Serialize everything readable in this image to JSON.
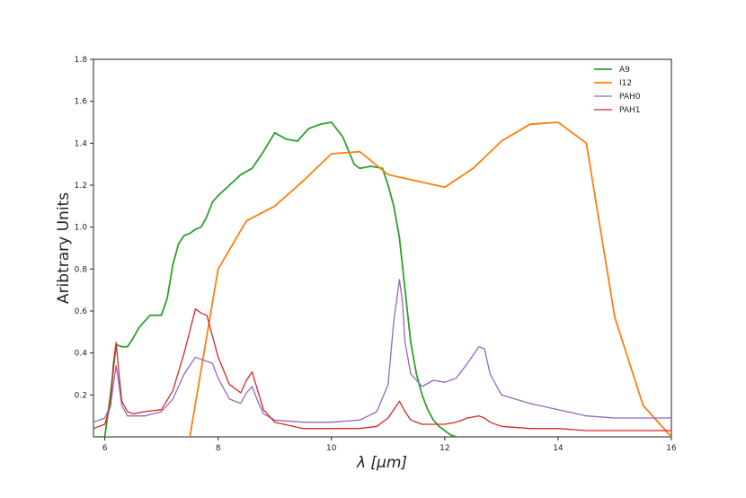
{
  "chart_data": {
    "type": "line",
    "title": "",
    "xlabel": "λ [μm]",
    "ylabel": "Aribtrary Units",
    "xlim": [
      5.8,
      16
    ],
    "ylim": [
      0,
      1.8
    ],
    "xticks": [
      "6",
      "8",
      "10",
      "12",
      "14",
      "16"
    ],
    "yticks": [
      "0.2",
      "0.4",
      "0.6",
      "0.8",
      "1.0",
      "1.2",
      "1.4",
      "1.6",
      "1.8"
    ],
    "grid": false,
    "legend_position": "top-right",
    "series": [
      {
        "name": "A9",
        "color": "#2ca02c",
        "x": [
          5.8,
          6.0,
          6.1,
          6.2,
          6.3,
          6.4,
          6.5,
          6.6,
          6.7,
          6.8,
          6.9,
          7.0,
          7.1,
          7.2,
          7.3,
          7.4,
          7.5,
          7.6,
          7.7,
          7.8,
          7.9,
          8.0,
          8.2,
          8.4,
          8.6,
          8.8,
          9.0,
          9.2,
          9.4,
          9.6,
          9.8,
          10.0,
          10.2,
          10.4,
          10.5,
          10.7,
          10.9,
          11.0,
          11.1,
          11.2,
          11.3,
          11.4,
          11.5,
          11.6,
          11.7,
          11.8,
          11.9,
          12.0,
          12.1,
          12.2
        ],
        "y": [
          0.0,
          0.0,
          0.2,
          0.44,
          0.43,
          0.43,
          0.47,
          0.52,
          0.55,
          0.58,
          0.58,
          0.58,
          0.66,
          0.82,
          0.92,
          0.96,
          0.97,
          0.99,
          1.0,
          1.05,
          1.12,
          1.15,
          1.2,
          1.25,
          1.28,
          1.36,
          1.45,
          1.42,
          1.41,
          1.47,
          1.49,
          1.5,
          1.43,
          1.3,
          1.28,
          1.29,
          1.28,
          1.2,
          1.1,
          0.95,
          0.7,
          0.45,
          0.3,
          0.2,
          0.13,
          0.08,
          0.05,
          0.03,
          0.01,
          0.0
        ]
      },
      {
        "name": "I12",
        "color": "#ff7f0e",
        "x": [
          7.5,
          8.0,
          8.5,
          9.0,
          9.5,
          10.0,
          10.5,
          11.0,
          11.5,
          12.0,
          12.5,
          13.0,
          13.5,
          14.0,
          14.5,
          15.0,
          15.5,
          16.0
        ],
        "y": [
          0.0,
          0.8,
          1.03,
          1.1,
          1.22,
          1.35,
          1.36,
          1.25,
          1.22,
          1.19,
          1.28,
          1.41,
          1.49,
          1.5,
          1.4,
          0.57,
          0.15,
          0.0
        ]
      },
      {
        "name": "PAH0",
        "color": "#9467bd",
        "x": [
          5.8,
          6.0,
          6.1,
          6.15,
          6.2,
          6.25,
          6.3,
          6.4,
          6.5,
          6.7,
          7.0,
          7.2,
          7.4,
          7.6,
          7.7,
          7.9,
          8.0,
          8.2,
          8.4,
          8.5,
          8.6,
          8.7,
          8.8,
          9.0,
          9.5,
          10.0,
          10.5,
          10.8,
          11.0,
          11.1,
          11.2,
          11.25,
          11.3,
          11.4,
          11.6,
          11.8,
          12.0,
          12.2,
          12.4,
          12.6,
          12.7,
          12.8,
          13.0,
          13.5,
          14.0,
          14.5,
          15.0,
          15.5,
          16.0
        ],
        "y": [
          0.07,
          0.09,
          0.15,
          0.25,
          0.34,
          0.25,
          0.15,
          0.1,
          0.1,
          0.1,
          0.12,
          0.18,
          0.3,
          0.38,
          0.37,
          0.35,
          0.28,
          0.18,
          0.16,
          0.21,
          0.24,
          0.17,
          0.11,
          0.08,
          0.07,
          0.07,
          0.08,
          0.12,
          0.25,
          0.55,
          0.75,
          0.65,
          0.45,
          0.3,
          0.24,
          0.27,
          0.26,
          0.28,
          0.35,
          0.43,
          0.42,
          0.3,
          0.2,
          0.16,
          0.13,
          0.1,
          0.09,
          0.09,
          0.09
        ]
      },
      {
        "name": "PAH1",
        "color": "#d62728",
        "x": [
          5.8,
          6.0,
          6.1,
          6.15,
          6.2,
          6.25,
          6.3,
          6.4,
          6.5,
          6.7,
          7.0,
          7.2,
          7.4,
          7.6,
          7.7,
          7.8,
          7.9,
          8.0,
          8.2,
          8.4,
          8.5,
          8.6,
          8.7,
          8.8,
          9.0,
          9.5,
          10.0,
          10.5,
          10.8,
          11.0,
          11.1,
          11.2,
          11.3,
          11.4,
          11.6,
          11.8,
          12.0,
          12.2,
          12.4,
          12.6,
          12.7,
          12.8,
          13.0,
          13.5,
          14.0,
          14.5,
          15.0,
          15.5,
          16.0
        ],
        "y": [
          0.04,
          0.06,
          0.15,
          0.35,
          0.45,
          0.3,
          0.17,
          0.12,
          0.11,
          0.12,
          0.13,
          0.22,
          0.4,
          0.61,
          0.59,
          0.58,
          0.48,
          0.38,
          0.25,
          0.21,
          0.27,
          0.31,
          0.22,
          0.13,
          0.07,
          0.04,
          0.04,
          0.04,
          0.05,
          0.09,
          0.13,
          0.17,
          0.12,
          0.08,
          0.06,
          0.06,
          0.06,
          0.07,
          0.09,
          0.1,
          0.09,
          0.07,
          0.05,
          0.04,
          0.04,
          0.03,
          0.03,
          0.03,
          0.03
        ]
      }
    ]
  }
}
